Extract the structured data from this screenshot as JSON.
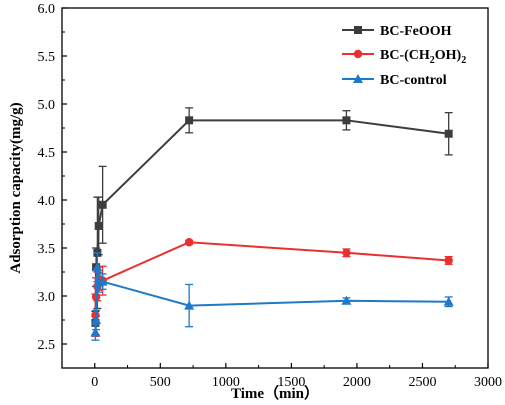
{
  "chart_data": {
    "type": "line",
    "xlabel": "Time（min）",
    "ylabel": "Adsorption capacity(mg/g)",
    "xlim": [
      -250,
      3000
    ],
    "ylim": [
      2.25,
      6.0
    ],
    "xticks": [
      0,
      500,
      1000,
      1500,
      2000,
      2500,
      3000
    ],
    "xtick_labels": [
      "0",
      "500",
      "1000",
      "1500",
      "2000",
      "2500",
      "3000"
    ],
    "yticks": [
      2.5,
      3.0,
      3.5,
      4.0,
      4.5,
      5.0,
      5.5,
      6.0
    ],
    "ytick_labels": [
      "2.5",
      "3.0",
      "3.5",
      "4.0",
      "4.5",
      "5.0",
      "5.5",
      "6.0"
    ],
    "grid": false,
    "legend_position": "top-right",
    "series": [
      {
        "name": "BC-FeOOH",
        "color": "#3d3d3d",
        "marker": "square",
        "x": [
          5,
          10,
          20,
          30,
          60,
          720,
          1920,
          2700
        ],
        "y": [
          2.72,
          3.3,
          3.45,
          3.73,
          3.95,
          4.83,
          4.83,
          4.69
        ],
        "err": [
          0.12,
          0.2,
          0.58,
          0.3,
          0.4,
          0.13,
          0.1,
          0.22
        ]
      },
      {
        "name_parts": [
          "BC-(CH",
          "2",
          "OH)",
          "2"
        ],
        "color": "#e8312f",
        "marker": "circle",
        "x": [
          5,
          10,
          20,
          30,
          60,
          720,
          1920,
          2700
        ],
        "y": [
          2.8,
          2.99,
          3.1,
          3.18,
          3.16,
          3.56,
          3.45,
          3.37
        ],
        "err": [
          0.22,
          0.2,
          0.15,
          0.12,
          0.15,
          0.02,
          0.04,
          0.04
        ]
      },
      {
        "name": "BC-control",
        "color": "#1f78c8",
        "marker": "triangle",
        "x": [
          5,
          10,
          20,
          30,
          60,
          720,
          1920,
          2700
        ],
        "y": [
          2.62,
          2.75,
          3.3,
          3.14,
          3.15,
          2.9,
          2.95,
          2.94
        ],
        "err": [
          0.08,
          0.1,
          0.15,
          0.1,
          0.08,
          0.22,
          0.03,
          0.05
        ]
      }
    ]
  }
}
